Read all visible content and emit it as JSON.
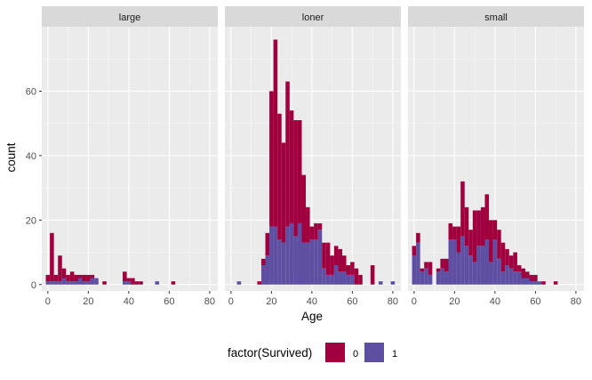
{
  "chart_data": {
    "type": "histogram",
    "bar_mode": "stacked",
    "xlabel": "Age",
    "ylabel": "count",
    "x_ticks": [
      0,
      20,
      40,
      60,
      80
    ],
    "y_ticks": [
      0,
      20,
      40,
      60
    ],
    "xlim": [
      -3,
      84
    ],
    "ylim": [
      -2,
      80
    ],
    "bin_width": 2,
    "grid": true,
    "panel_background": "#EBEBEB",
    "strip_background": "#D9D9D9",
    "legend": {
      "title": "factor(Survived)",
      "position": "bottom",
      "entries": [
        {
          "label": "0",
          "color": "#A1003F"
        },
        {
          "label": "1",
          "color": "#5E4FA2"
        }
      ]
    },
    "facets": [
      {
        "label": "large",
        "bins": [
          {
            "x": 0,
            "died": 2,
            "survived": 1
          },
          {
            "x": 2,
            "died": 15,
            "survived": 1
          },
          {
            "x": 4,
            "died": 2,
            "survived": 1
          },
          {
            "x": 6,
            "died": 8,
            "survived": 1
          },
          {
            "x": 8,
            "died": 3,
            "survived": 2
          },
          {
            "x": 10,
            "died": 2,
            "survived": 1
          },
          {
            "x": 12,
            "died": 3,
            "survived": 1
          },
          {
            "x": 14,
            "died": 2,
            "survived": 1
          },
          {
            "x": 16,
            "died": 1,
            "survived": 2
          },
          {
            "x": 18,
            "died": 2,
            "survived": 1
          },
          {
            "x": 20,
            "died": 2,
            "survived": 1
          },
          {
            "x": 22,
            "died": 1,
            "survived": 2
          },
          {
            "x": 24,
            "died": 0,
            "survived": 2
          },
          {
            "x": 28,
            "died": 1,
            "survived": 0
          },
          {
            "x": 38,
            "died": 3,
            "survived": 1
          },
          {
            "x": 40,
            "died": 1,
            "survived": 1
          },
          {
            "x": 42,
            "died": 2,
            "survived": 0
          },
          {
            "x": 44,
            "died": 1,
            "survived": 0
          },
          {
            "x": 46,
            "died": 1,
            "survived": 0
          },
          {
            "x": 54,
            "died": 0,
            "survived": 1
          },
          {
            "x": 62,
            "died": 1,
            "survived": 0
          }
        ]
      },
      {
        "label": "loner",
        "bins": [
          {
            "x": 4,
            "died": 0,
            "survived": 1
          },
          {
            "x": 14,
            "died": 1,
            "survived": 0
          },
          {
            "x": 16,
            "died": 2,
            "survived": 6
          },
          {
            "x": 18,
            "died": 7,
            "survived": 9
          },
          {
            "x": 20,
            "died": 42,
            "survived": 18
          },
          {
            "x": 22,
            "died": 58,
            "survived": 18
          },
          {
            "x": 24,
            "died": 39,
            "survived": 14
          },
          {
            "x": 26,
            "died": 31,
            "survived": 13
          },
          {
            "x": 28,
            "died": 45,
            "survived": 18
          },
          {
            "x": 30,
            "died": 35,
            "survived": 19
          },
          {
            "x": 32,
            "died": 36,
            "survived": 15
          },
          {
            "x": 34,
            "died": 32,
            "survived": 19
          },
          {
            "x": 36,
            "died": 21,
            "survived": 13
          },
          {
            "x": 38,
            "died": 11,
            "survived": 13
          },
          {
            "x": 40,
            "died": 4,
            "survived": 14
          },
          {
            "x": 42,
            "died": 5,
            "survived": 14
          },
          {
            "x": 44,
            "died": 2,
            "survived": 17
          },
          {
            "x": 46,
            "died": 8,
            "survived": 5
          },
          {
            "x": 48,
            "died": 10,
            "survived": 3
          },
          {
            "x": 50,
            "died": 6,
            "survived": 3
          },
          {
            "x": 52,
            "died": 6,
            "survived": 6
          },
          {
            "x": 54,
            "died": 7,
            "survived": 4
          },
          {
            "x": 56,
            "died": 5,
            "survived": 4
          },
          {
            "x": 58,
            "died": 3,
            "survived": 3
          },
          {
            "x": 60,
            "died": 4,
            "survived": 3
          },
          {
            "x": 62,
            "died": 5,
            "survived": 0
          },
          {
            "x": 64,
            "died": 3,
            "survived": 0
          },
          {
            "x": 70,
            "died": 6,
            "survived": 0
          },
          {
            "x": 74,
            "died": 0,
            "survived": 1
          },
          {
            "x": 80,
            "died": 0,
            "survived": 1
          }
        ]
      },
      {
        "label": "small",
        "bins": [
          {
            "x": 0,
            "died": 3,
            "survived": 9
          },
          {
            "x": 2,
            "died": 3,
            "survived": 13
          },
          {
            "x": 4,
            "died": 1,
            "survived": 4
          },
          {
            "x": 6,
            "died": 2,
            "survived": 5
          },
          {
            "x": 8,
            "died": 4,
            "survived": 3
          },
          {
            "x": 12,
            "died": 1,
            "survived": 4
          },
          {
            "x": 14,
            "died": 3,
            "survived": 5
          },
          {
            "x": 16,
            "died": 4,
            "survived": 4
          },
          {
            "x": 18,
            "died": 5,
            "survived": 14
          },
          {
            "x": 20,
            "died": 4,
            "survived": 14
          },
          {
            "x": 22,
            "died": 8,
            "survived": 10
          },
          {
            "x": 24,
            "died": 17,
            "survived": 15
          },
          {
            "x": 26,
            "died": 12,
            "survived": 12
          },
          {
            "x": 28,
            "died": 8,
            "survived": 9
          },
          {
            "x": 30,
            "died": 16,
            "survived": 7
          },
          {
            "x": 32,
            "died": 11,
            "survived": 12
          },
          {
            "x": 34,
            "died": 12,
            "survived": 12
          },
          {
            "x": 36,
            "died": 14,
            "survived": 14
          },
          {
            "x": 38,
            "died": 13,
            "survived": 7
          },
          {
            "x": 40,
            "died": 6,
            "survived": 14
          },
          {
            "x": 42,
            "died": 9,
            "survived": 8
          },
          {
            "x": 44,
            "died": 9,
            "survived": 4
          },
          {
            "x": 46,
            "died": 5,
            "survived": 6
          },
          {
            "x": 48,
            "died": 4,
            "survived": 5
          },
          {
            "x": 50,
            "died": 6,
            "survived": 4
          },
          {
            "x": 52,
            "died": 2,
            "survived": 4
          },
          {
            "x": 54,
            "died": 3,
            "survived": 2
          },
          {
            "x": 56,
            "died": 2,
            "survived": 2
          },
          {
            "x": 58,
            "died": 2,
            "survived": 1
          },
          {
            "x": 60,
            "died": 2,
            "survived": 1
          },
          {
            "x": 62,
            "died": 0,
            "survived": 1
          },
          {
            "x": 64,
            "died": 1,
            "survived": 0
          },
          {
            "x": 70,
            "died": 1,
            "survived": 0
          }
        ]
      }
    ]
  }
}
